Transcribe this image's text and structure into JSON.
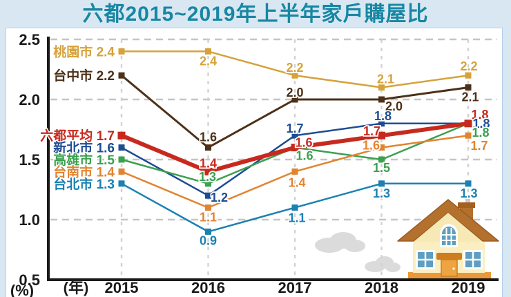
{
  "title": "六都2015~2019年上半年家戶購屋比",
  "axes": {
    "y_unit": "(%)",
    "x_unit": "(年)",
    "y_ticks": [
      "2.5",
      "2.0",
      "1.5",
      "1.0",
      "0.5"
    ],
    "x_ticks": [
      "2015",
      "2016",
      "2017",
      "2018",
      "2019"
    ]
  },
  "chart_data": {
    "type": "line",
    "title": "六都2015~2019年上半年家戶購屋比",
    "xlabel": "(年)",
    "ylabel": "(%)",
    "x": [
      2015,
      2016,
      2017,
      2018,
      2019
    ],
    "ylim": [
      0.5,
      2.5
    ],
    "grid": true,
    "legend_position": "inline-left",
    "marker": "square",
    "series": [
      {
        "name": "桃園市",
        "slug": "taoyuan",
        "color": "#D6A23C",
        "values": [
          2.4,
          2.4,
          2.2,
          2.1,
          2.2
        ],
        "label_offsets": [
          [
            0,
            14
          ],
          [
            0,
            -11
          ],
          [
            6,
            -12
          ],
          [
            1,
            -13
          ]
        ]
      },
      {
        "name": "台中市",
        "slug": "taichung",
        "color": "#4C3018",
        "values": [
          2.2,
          1.6,
          2.0,
          2.0,
          2.1
        ],
        "label_offsets": [
          [
            0,
            -15
          ],
          [
            0,
            -10
          ],
          [
            18,
            10
          ],
          [
            3,
            14
          ]
        ]
      },
      {
        "name": "六都平均",
        "slug": "six-city-average",
        "color": "#C8291E",
        "emphasis": true,
        "values": [
          1.7,
          1.4,
          1.6,
          1.7,
          1.8
        ],
        "label_offsets": [
          [
            0,
            -12
          ],
          [
            13,
            -7
          ],
          [
            -14,
            -6
          ],
          [
            17,
            -13
          ]
        ]
      },
      {
        "name": "新北市",
        "slug": "new-taipei",
        "color": "#1E4C93",
        "values": [
          1.6,
          1.2,
          1.7,
          1.8,
          1.8
        ],
        "label_offsets": [
          [
            16,
            3
          ],
          [
            0,
            -10
          ],
          [
            2,
            -11
          ],
          [
            19,
            0
          ]
        ]
      },
      {
        "name": "高雄市",
        "slug": "kaohsiung",
        "color": "#3BA04F",
        "values": [
          1.5,
          1.3,
          1.6,
          1.5,
          1.8
        ],
        "label_offsets": [
          [
            -1,
            -10
          ],
          [
            14,
            12
          ],
          [
            0,
            12
          ],
          [
            18,
            13
          ]
        ]
      },
      {
        "name": "台南市",
        "slug": "tainan",
        "color": "#E18431",
        "values": [
          1.4,
          1.1,
          1.4,
          1.6,
          1.7
        ],
        "label_offsets": [
          [
            0,
            14
          ],
          [
            3,
            16
          ],
          [
            -15,
            -3
          ],
          [
            16,
            15
          ]
        ]
      },
      {
        "name": "台北市",
        "slug": "taipei",
        "color": "#1A81B1",
        "values": [
          1.3,
          0.9,
          1.1,
          1.3,
          1.3
        ],
        "label_offsets": [
          [
            0,
            13
          ],
          [
            3,
            15
          ],
          [
            0,
            14
          ],
          [
            1,
            14
          ]
        ]
      }
    ]
  }
}
